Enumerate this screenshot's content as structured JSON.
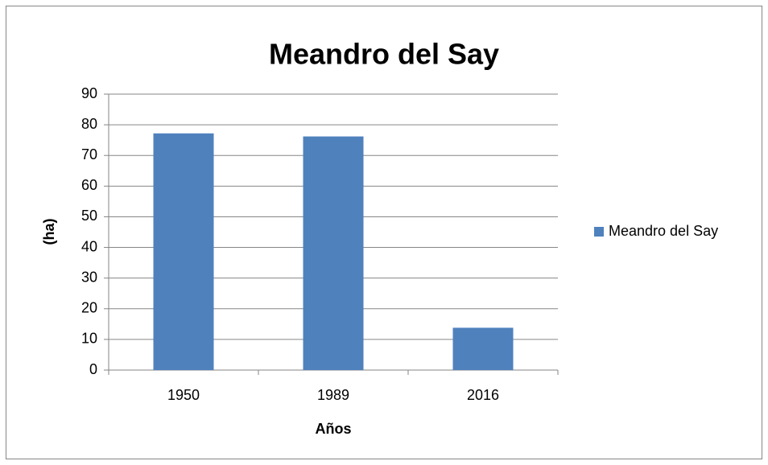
{
  "chart_data": {
    "type": "bar",
    "title": "Meandro del Say",
    "categories": [
      "1950",
      "1989",
      "2016"
    ],
    "series": [
      {
        "name": "Meandro del Say",
        "color": "#4f81bd",
        "values": [
          77.2,
          76.2,
          13.8
        ]
      }
    ],
    "ylim": [
      0,
      90
    ],
    "yticks": [
      0,
      10,
      20,
      30,
      40,
      50,
      60,
      70,
      80,
      90
    ],
    "y_label": "(ha)",
    "x_label": "Años",
    "grid": true,
    "legend": "right"
  }
}
